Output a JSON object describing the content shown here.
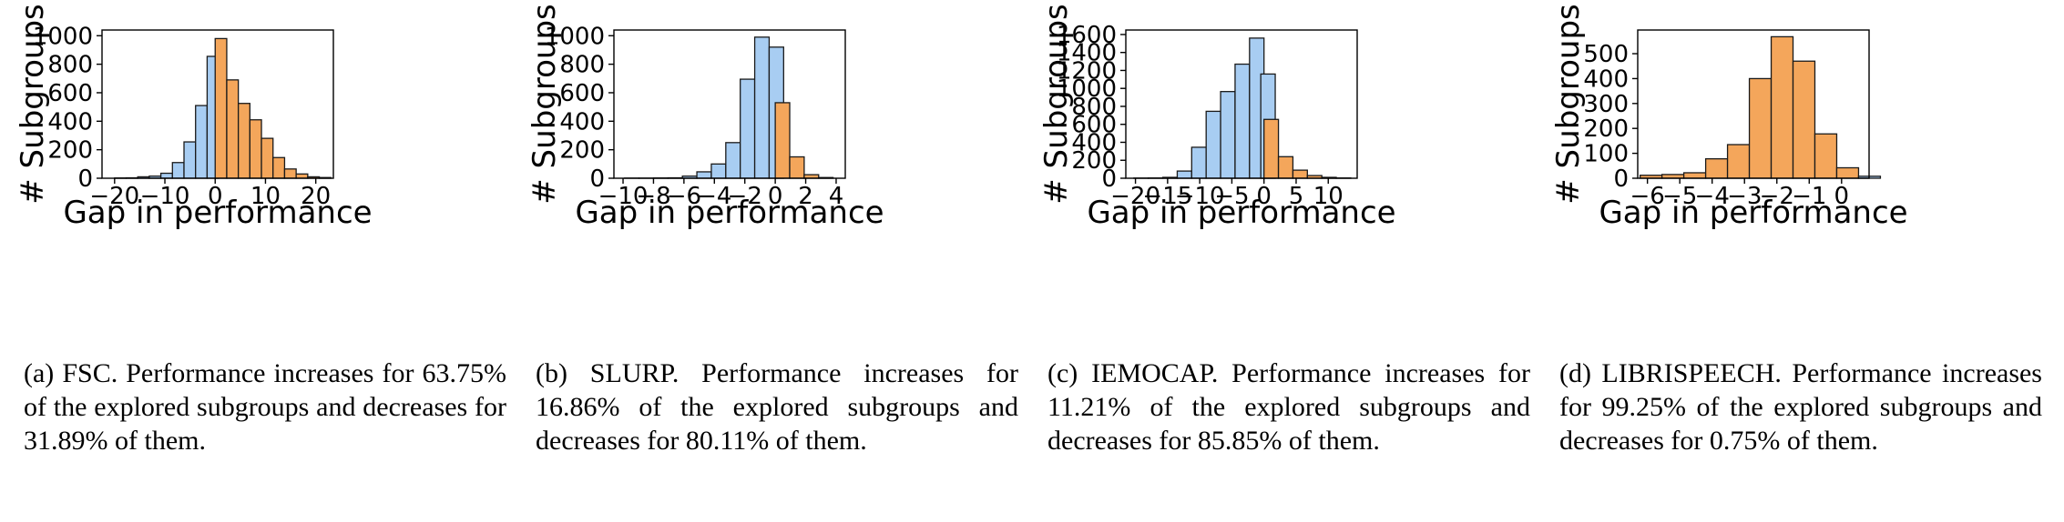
{
  "colors": {
    "increase": "#f4a65b",
    "decrease": "#a8cdf2",
    "edge": "#1a1a1a"
  },
  "chart_data": [
    {
      "type": "bar",
      "xlabel": "Gap in performance",
      "ylabel": "# Subgroups",
      "xlim": [
        -22.5,
        23.5
      ],
      "ylim": [
        0,
        1040
      ],
      "xticks": [
        -20,
        -10,
        0,
        10,
        20
      ],
      "yticks": [
        0,
        200,
        400,
        600,
        800,
        1000
      ],
      "bin_width": 2.3,
      "bins": [
        {
          "start": -20.0,
          "value": 2,
          "group": "decrease"
        },
        {
          "start": -17.7,
          "value": 3,
          "group": "decrease"
        },
        {
          "start": -15.4,
          "value": 10,
          "group": "decrease"
        },
        {
          "start": -13.1,
          "value": 15,
          "group": "decrease"
        },
        {
          "start": -10.8,
          "value": 35,
          "group": "decrease"
        },
        {
          "start": -8.5,
          "value": 110,
          "group": "decrease"
        },
        {
          "start": -6.2,
          "value": 255,
          "group": "decrease"
        },
        {
          "start": -3.9,
          "value": 510,
          "group": "decrease"
        },
        {
          "start": -1.6,
          "value": 855,
          "group": "decrease"
        },
        {
          "start": 0.0,
          "value": 980,
          "group": "increase"
        },
        {
          "start": 2.3,
          "value": 690,
          "group": "increase"
        },
        {
          "start": 4.6,
          "value": 525,
          "group": "increase"
        },
        {
          "start": 6.9,
          "value": 410,
          "group": "increase"
        },
        {
          "start": 9.2,
          "value": 280,
          "group": "increase"
        },
        {
          "start": 11.5,
          "value": 145,
          "group": "increase"
        },
        {
          "start": 13.8,
          "value": 65,
          "group": "increase"
        },
        {
          "start": 16.1,
          "value": 30,
          "group": "increase"
        },
        {
          "start": 18.4,
          "value": 10,
          "group": "increase"
        },
        {
          "start": 20.7,
          "value": 5,
          "group": "increase"
        }
      ]
    },
    {
      "type": "bar",
      "xlabel": "Gap in performance",
      "ylabel": "# Subgroups",
      "xlim": [
        -10.6,
        4.6
      ],
      "ylim": [
        0,
        1040
      ],
      "xticks": [
        -10,
        -8,
        -6,
        -4,
        -2,
        0,
        2,
        4
      ],
      "yticks": [
        0,
        200,
        400,
        600,
        800,
        1000
      ],
      "bin_width": 0.95,
      "bins": [
        {
          "start": -9.9,
          "value": 1,
          "group": "decrease"
        },
        {
          "start": -8.95,
          "value": 1,
          "group": "decrease"
        },
        {
          "start": -8.0,
          "value": 2,
          "group": "decrease"
        },
        {
          "start": -7.05,
          "value": 3,
          "group": "decrease"
        },
        {
          "start": -6.1,
          "value": 15,
          "group": "decrease"
        },
        {
          "start": -5.15,
          "value": 45,
          "group": "decrease"
        },
        {
          "start": -4.2,
          "value": 100,
          "group": "decrease"
        },
        {
          "start": -3.25,
          "value": 250,
          "group": "decrease"
        },
        {
          "start": -2.3,
          "value": 695,
          "group": "decrease"
        },
        {
          "start": -1.35,
          "value": 990,
          "group": "decrease"
        },
        {
          "start": -0.4,
          "value": 920,
          "group": "decrease"
        },
        {
          "start": 0.0,
          "value": 530,
          "group": "increase"
        },
        {
          "start": 0.95,
          "value": 150,
          "group": "increase"
        },
        {
          "start": 1.9,
          "value": 25,
          "group": "increase"
        },
        {
          "start": 2.85,
          "value": 5,
          "group": "increase"
        }
      ]
    },
    {
      "type": "bar",
      "xlabel": "Gap in performance",
      "ylabel": "# Subgroups",
      "xlim": [
        -21.5,
        14.5
      ],
      "ylim": [
        0,
        1650
      ],
      "xticks": [
        -20,
        -15,
        -10,
        -5,
        0,
        5,
        10
      ],
      "yticks": [
        0,
        200,
        400,
        600,
        800,
        1000,
        1200,
        1400,
        1600
      ],
      "bin_width": 2.25,
      "bins": [
        {
          "start": -20.25,
          "value": 2,
          "group": "decrease"
        },
        {
          "start": -18.0,
          "value": 3,
          "group": "decrease"
        },
        {
          "start": -15.75,
          "value": 10,
          "group": "decrease"
        },
        {
          "start": -13.5,
          "value": 80,
          "group": "decrease"
        },
        {
          "start": -11.25,
          "value": 345,
          "group": "decrease"
        },
        {
          "start": -9.0,
          "value": 745,
          "group": "decrease"
        },
        {
          "start": -6.75,
          "value": 965,
          "group": "decrease"
        },
        {
          "start": -4.5,
          "value": 1270,
          "group": "decrease"
        },
        {
          "start": -2.25,
          "value": 1560,
          "group": "decrease"
        },
        {
          "start": -0.5,
          "value": 1160,
          "group": "decrease"
        },
        {
          "start": 0.0,
          "value": 655,
          "group": "increase"
        },
        {
          "start": 2.25,
          "value": 240,
          "group": "increase"
        },
        {
          "start": 4.5,
          "value": 90,
          "group": "increase"
        },
        {
          "start": 6.75,
          "value": 30,
          "group": "increase"
        },
        {
          "start": 9.0,
          "value": 10,
          "group": "increase"
        },
        {
          "start": 11.25,
          "value": 3,
          "group": "increase"
        }
      ]
    },
    {
      "type": "bar",
      "xlabel": "Gap in performance",
      "ylabel": "# Subgroups",
      "xlim": [
        -6.3,
        0.85
      ],
      "ylim": [
        0,
        595
      ],
      "xticks": [
        -6,
        -5,
        -4,
        -3,
        -2,
        -1,
        0
      ],
      "yticks": [
        0,
        100,
        200,
        300,
        400,
        500
      ],
      "bin_width": 0.675,
      "bins": [
        {
          "start": -6.225,
          "value": 12,
          "group": "increase"
        },
        {
          "start": -5.55,
          "value": 15,
          "group": "increase"
        },
        {
          "start": -4.875,
          "value": 22,
          "group": "increase"
        },
        {
          "start": -4.2,
          "value": 78,
          "group": "increase"
        },
        {
          "start": -3.525,
          "value": 135,
          "group": "increase"
        },
        {
          "start": -2.85,
          "value": 400,
          "group": "increase"
        },
        {
          "start": -2.175,
          "value": 568,
          "group": "increase"
        },
        {
          "start": -1.5,
          "value": 470,
          "group": "increase"
        },
        {
          "start": -0.825,
          "value": 178,
          "group": "increase"
        },
        {
          "start": -0.15,
          "value": 42,
          "group": "increase"
        },
        {
          "start": 0.525,
          "value": 0,
          "group": "increase"
        },
        {
          "start": 0.525,
          "value": 8,
          "group": "decrease"
        }
      ]
    }
  ],
  "captions": [
    "(a) FSC.  Performance increases for 63.75% of the explored subgroups and decreases for 31.89% of them.",
    "(b) SLURP.  Performance increases for 16.86% of the explored subgroups and decreases for 80.11% of them.",
    "(c) IEMOCAP.  Performance increases for 11.21% of the explored subgroups and decreases for 85.85% of them.",
    "(d) LIBRISPEECH.  Performance increases for 99.25% of the explored subgroups and decreases for 0.75% of them."
  ]
}
